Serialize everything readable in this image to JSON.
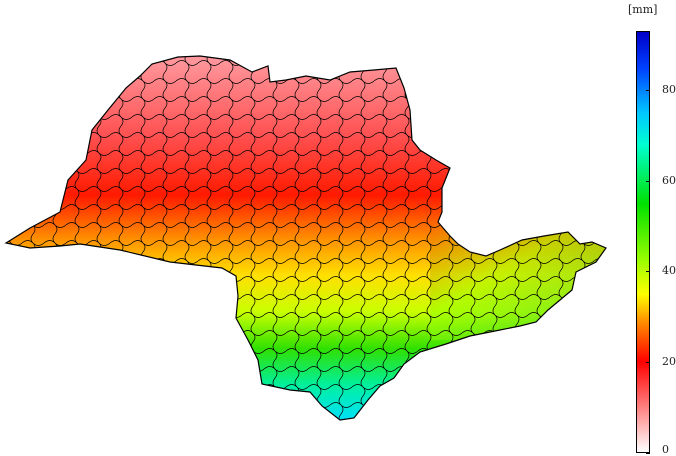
{
  "legend": {
    "unit": "[mm]",
    "min": 0,
    "max": 93,
    "ticks": [
      "0",
      "20",
      "40",
      "60",
      "80"
    ],
    "tick_values": [
      0,
      20,
      40,
      60,
      80
    ],
    "colors": [
      "#ffffff",
      "#ff9999",
      "#ff0000",
      "#ff8000",
      "#ffff00",
      "#a0ff00",
      "#00e000",
      "#00ffd0",
      "#00c8ff",
      "#0040ff",
      "#0000c8"
    ],
    "color_stops": [
      0,
      8,
      20,
      28,
      35,
      42,
      55,
      68,
      75,
      85,
      93
    ]
  }
}
